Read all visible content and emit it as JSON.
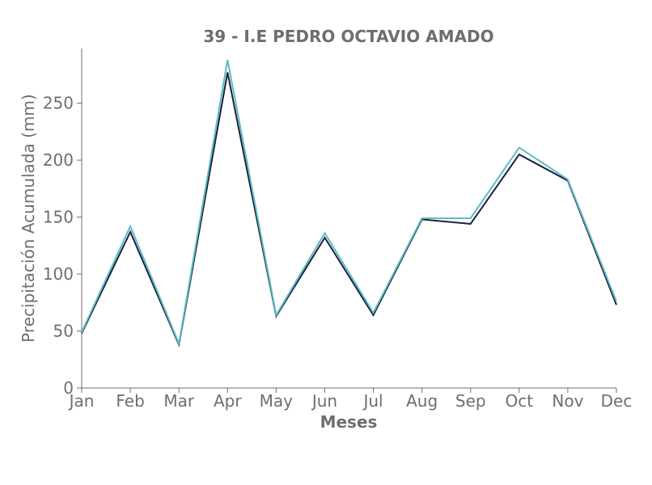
{
  "chart_data": {
    "type": "line",
    "title": "39 - I.E PEDRO OCTAVIO AMADO",
    "xlabel": "Meses",
    "ylabel": "Precipitación Acumulada (mm)",
    "categories": [
      "Jan",
      "Feb",
      "Mar",
      "Apr",
      "May",
      "Jun",
      "Jul",
      "Aug",
      "Sep",
      "Oct",
      "Nov",
      "Dec"
    ],
    "ylim": [
      0,
      298
    ],
    "yticks": [
      0,
      50,
      100,
      150,
      200,
      250
    ],
    "grid": false,
    "series": [
      {
        "color": "#1b1f3b",
        "values": [
          48,
          137,
          38,
          277,
          63,
          132,
          64,
          148,
          144,
          205,
          182,
          73
        ]
      },
      {
        "color": "#5bbcc4",
        "values": [
          49,
          142,
          39,
          288,
          64,
          136,
          66,
          149,
          149,
          211,
          183,
          76
        ]
      }
    ]
  }
}
